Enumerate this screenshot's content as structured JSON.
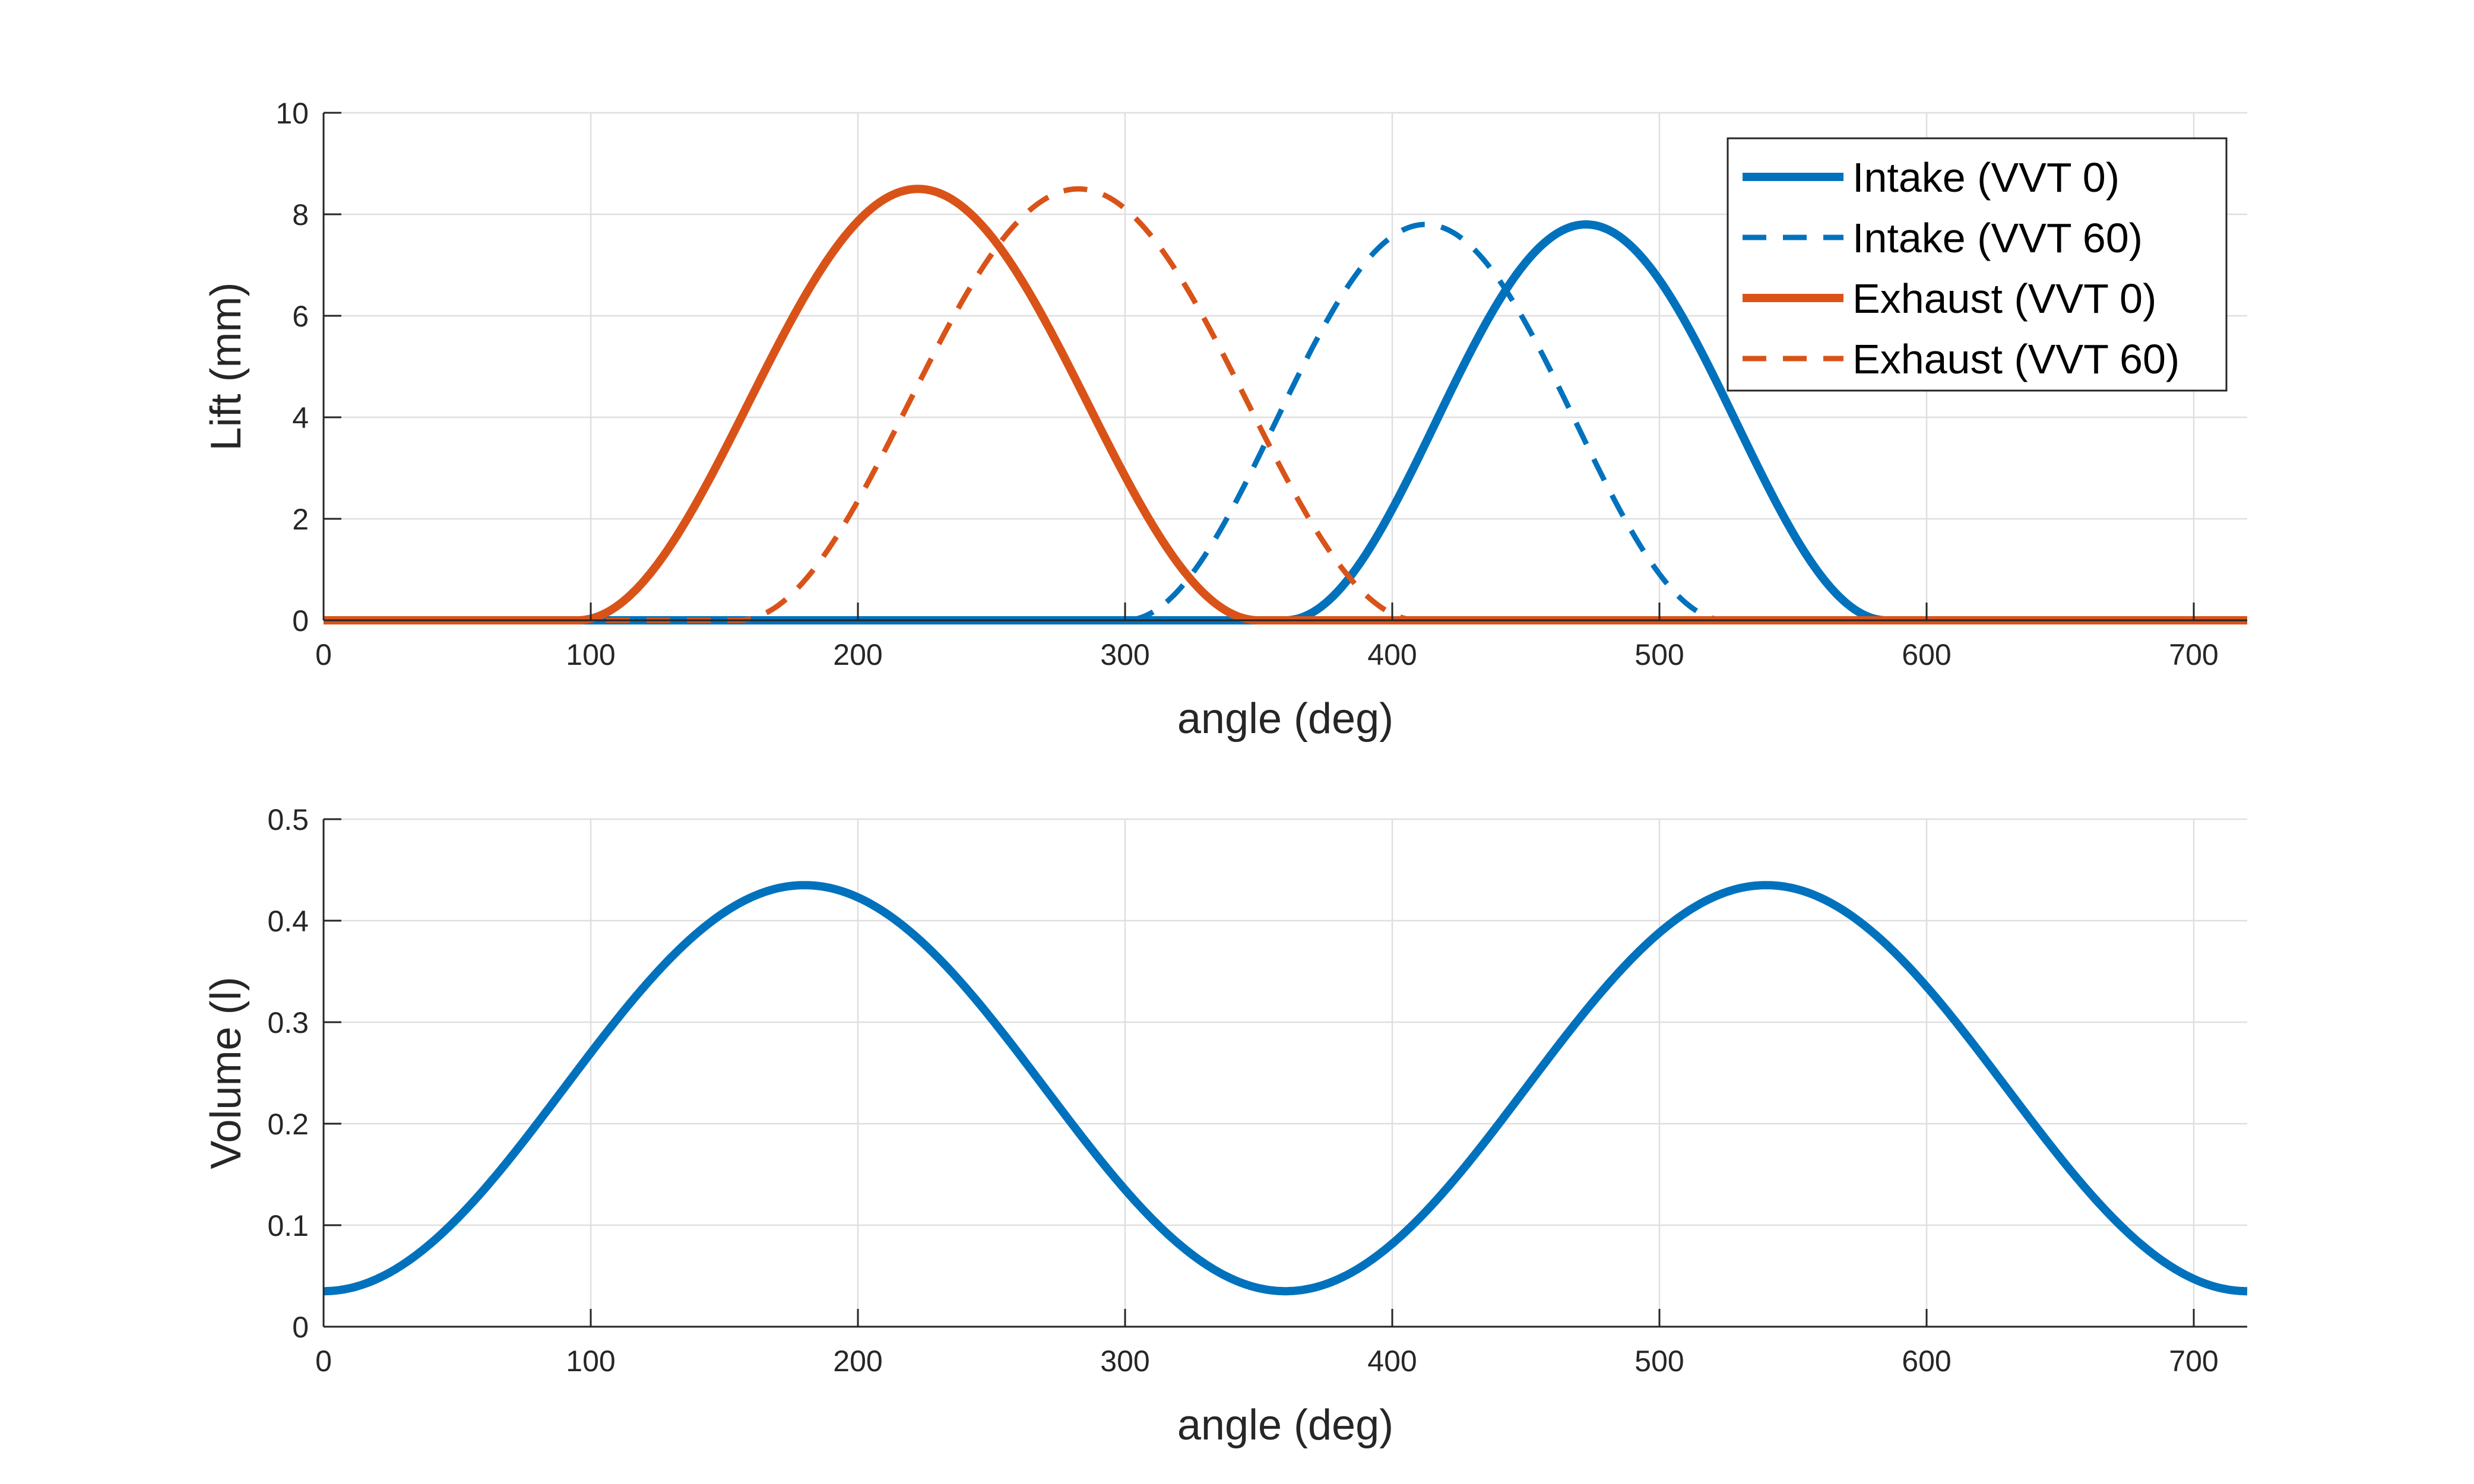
{
  "colors": {
    "intake": "#0072BD",
    "exhaust": "#D95319",
    "grid": "#dfdfdf",
    "axis": "#262626"
  },
  "chart_data": [
    {
      "type": "line",
      "xlabel": "angle (deg)",
      "ylabel": "Lift (mm)",
      "xlim": [
        0,
        720
      ],
      "ylim": [
        0,
        10
      ],
      "xticks": [
        0,
        100,
        200,
        300,
        400,
        500,
        600,
        700
      ],
      "yticks": [
        0,
        2,
        4,
        6,
        8,
        10
      ],
      "grid": true,
      "legend_position": "top-right",
      "series": [
        {
          "name": "Intake (VVT 0)",
          "color": "#0072BD",
          "style": "solid",
          "kind": "lift",
          "open": 360,
          "close": 585,
          "peak": 7.8
        },
        {
          "name": "Intake (VVT 60)",
          "color": "#0072BD",
          "style": "dashed",
          "kind": "lift",
          "open": 300,
          "close": 525,
          "peak": 7.8
        },
        {
          "name": "Exhaust (VVT 0)",
          "color": "#D95319",
          "style": "solid",
          "kind": "lift",
          "open": 95,
          "close": 350,
          "peak": 8.5
        },
        {
          "name": "Exhaust (VVT 60)",
          "color": "#D95319",
          "style": "dashed",
          "kind": "lift",
          "open": 155,
          "close": 410,
          "peak": 8.5
        }
      ]
    },
    {
      "type": "line",
      "xlabel": "angle (deg)",
      "ylabel": "Volume (l)",
      "xlim": [
        0,
        720
      ],
      "ylim": [
        0,
        0.5
      ],
      "xticks": [
        0,
        100,
        200,
        300,
        400,
        500,
        600,
        700
      ],
      "yticks": [
        0,
        0.1,
        0.2,
        0.3,
        0.4,
        0.5
      ],
      "grid": true,
      "series": [
        {
          "name": "",
          "color": "#0072BD",
          "style": "solid",
          "kind": "volume",
          "min": 0.035,
          "max": 0.435,
          "period": 360
        }
      ]
    }
  ]
}
